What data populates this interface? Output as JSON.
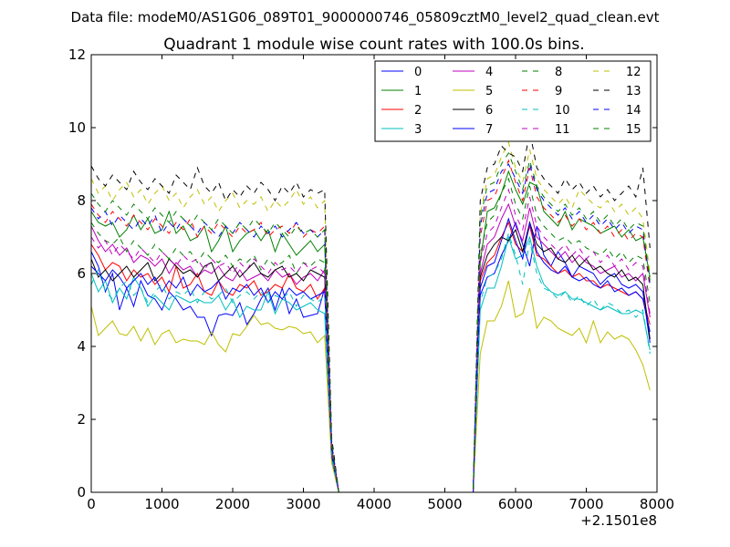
{
  "figure": {
    "suptitle": "Data file: modeM0/AS1G06_089T01_9000000746_05809cztM0_level2_quad_clean.evt"
  },
  "chart_data": {
    "type": "line",
    "title": "Quadrant 1 module wise count rates with 100.0s bins.",
    "xlabel": "",
    "ylabel": "",
    "xlim": [
      0,
      8000
    ],
    "ylim": [
      0,
      12
    ],
    "xticks": [
      0,
      1000,
      2000,
      3000,
      4000,
      5000,
      6000,
      7000,
      8000
    ],
    "xtick_labels": [
      "0",
      "1000",
      "2000",
      "3000",
      "4000",
      "5000",
      "6000",
      "7000",
      "8000"
    ],
    "yticks": [
      0,
      2,
      4,
      6,
      8,
      10,
      12
    ],
    "ytick_labels": [
      "0",
      "2",
      "4",
      "6",
      "8",
      "10",
      "12"
    ],
    "x_offset_label": "+2.1501e8",
    "grid": false,
    "legend_position": "top-right",
    "segments": [
      {
        "x_start": 0,
        "x_end": 3300,
        "step": 100
      },
      {
        "x_start": 5500,
        "x_end": 7900,
        "step": 100
      }
    ],
    "transition_x": [
      3300,
      3400,
      3500,
      5400,
      5500
    ],
    "series": [
      {
        "name": "0",
        "color": "#0000ff",
        "style": "solid",
        "seg1": [
          6.6,
          6.2,
          5.5,
          6.0,
          5.0,
          5.6,
          5.1,
          5.8,
          5.4,
          5.3,
          5.0,
          5.5,
          5.3,
          5.0,
          5.1,
          4.8,
          4.8,
          4.3,
          4.85,
          4.9,
          4.85,
          5.2,
          4.6,
          4.9,
          5.3,
          5.6,
          5.0,
          5.6,
          4.9,
          5.3,
          4.8,
          4.85,
          4.9,
          5.6
        ],
        "trans": [
          4.1,
          0.9,
          0,
          0,
          5.4
        ],
        "seg2": [
          5.4,
          5.9,
          6.0,
          6.5,
          6.9,
          7.4,
          6.8,
          6.2,
          7.3,
          6.5,
          6.2,
          6.6,
          6.3,
          5.9,
          6.2,
          6.1,
          6.0,
          5.7,
          5.9,
          6.0,
          5.7,
          5.6,
          5.7,
          5.5,
          4.1
        ]
      },
      {
        "name": "1",
        "color": "#008000",
        "style": "solid",
        "seg1": [
          7.7,
          7.4,
          7.3,
          7.4,
          7.0,
          7.2,
          7.6,
          7.2,
          7.5,
          7.1,
          7.2,
          7.7,
          7.1,
          7.3,
          6.9,
          7.0,
          7.3,
          6.6,
          6.9,
          7.3,
          6.6,
          6.9,
          7.1,
          7.2,
          6.9,
          7.2,
          6.6,
          7.1,
          6.8,
          6.5,
          6.7,
          6.9,
          6.6,
          6.8
        ],
        "trans": [
          5.0,
          1.2,
          0,
          0,
          6.3
        ],
        "seg2": [
          6.3,
          7.7,
          7.8,
          8.2,
          8.8,
          8.3,
          7.9,
          8.5,
          8.4,
          7.7,
          7.5,
          7.3,
          7.7,
          7.2,
          7.5,
          7.4,
          7.3,
          7.1,
          7.2,
          7.3,
          7.0,
          7.2,
          6.9,
          7.0,
          5.9
        ]
      },
      {
        "name": "2",
        "color": "#ff0000",
        "style": "solid",
        "seg1": [
          6.8,
          6.5,
          6.1,
          6.3,
          6.2,
          5.8,
          6.1,
          5.9,
          6.0,
          5.7,
          5.9,
          5.5,
          6.2,
          5.6,
          5.7,
          6.0,
          5.5,
          5.4,
          5.8,
          5.5,
          5.4,
          5.7,
          5.6,
          5.8,
          5.4,
          5.5,
          5.7,
          5.6,
          6.0,
          5.6,
          5.5,
          5.7,
          5.3,
          5.6
        ],
        "trans": [
          4.5,
          1.0,
          0,
          0,
          5.8
        ],
        "seg2": [
          5.8,
          6.3,
          6.5,
          7.0,
          7.4,
          6.8,
          6.6,
          7.3,
          6.5,
          6.4,
          6.2,
          6.0,
          6.1,
          5.9,
          6.0,
          5.8,
          5.8,
          5.6,
          5.7,
          5.6,
          5.5,
          5.4,
          5.5,
          5.3,
          4.6
        ]
      },
      {
        "name": "3",
        "color": "#00bfbf",
        "style": "solid",
        "seg1": [
          6.0,
          5.5,
          5.8,
          5.2,
          5.6,
          5.3,
          5.9,
          5.6,
          5.1,
          5.4,
          5.2,
          5.0,
          5.4,
          5.3,
          5.2,
          5.3,
          5.2,
          5.2,
          5.4,
          5.0,
          5.3,
          4.8,
          5.1,
          5.0,
          5.0,
          5.5,
          4.9,
          5.3,
          5.2,
          5.0,
          5.1,
          5.2,
          5.0,
          4.9
        ],
        "trans": [
          4.0,
          0.9,
          0,
          0,
          5.0
        ],
        "seg2": [
          5.0,
          5.6,
          5.6,
          6.2,
          7.0,
          6.4,
          6.5,
          7.0,
          6.2,
          5.7,
          5.5,
          5.4,
          5.5,
          5.3,
          5.3,
          5.2,
          5.1,
          5.0,
          5.1,
          5.0,
          4.9,
          4.9,
          5.0,
          4.9,
          3.9
        ]
      },
      {
        "name": "4",
        "color": "#bf00bf",
        "style": "solid",
        "seg1": [
          7.3,
          6.9,
          6.6,
          6.8,
          6.5,
          6.7,
          6.3,
          6.5,
          6.4,
          6.2,
          6.4,
          6.0,
          6.3,
          6.1,
          6.2,
          5.9,
          6.1,
          6.0,
          6.2,
          5.9,
          5.8,
          6.1,
          5.8,
          5.9,
          6.0,
          5.8,
          6.1,
          5.9,
          6.0,
          5.7,
          5.9,
          6.0,
          5.8,
          6.1
        ],
        "trans": [
          4.8,
          1.1,
          0,
          0,
          6.0
        ],
        "seg2": [
          6.0,
          6.8,
          7.0,
          7.5,
          7.9,
          7.3,
          6.9,
          7.8,
          7.0,
          6.8,
          6.6,
          6.4,
          6.6,
          6.3,
          6.5,
          6.3,
          6.2,
          6.0,
          6.1,
          6.2,
          5.9,
          6.0,
          5.8,
          6.0,
          4.8
        ]
      },
      {
        "name": "5",
        "color": "#bfbf00",
        "style": "solid",
        "seg1": [
          5.1,
          4.3,
          4.5,
          4.7,
          4.35,
          4.3,
          4.55,
          4.15,
          4.5,
          4.05,
          4.35,
          4.45,
          4.1,
          4.2,
          4.15,
          4.15,
          4.05,
          4.4,
          4.05,
          3.85,
          4.35,
          4.3,
          4.55,
          4.85,
          4.6,
          4.65,
          4.5,
          4.45,
          4.55,
          4.5,
          4.35,
          4.4,
          4.1,
          4.3
        ],
        "trans": [
          3.4,
          0.8,
          0,
          0,
          3.8
        ],
        "seg2": [
          3.8,
          4.7,
          4.7,
          5.1,
          5.8,
          4.8,
          4.9,
          5.6,
          4.5,
          4.8,
          4.7,
          4.5,
          4.4,
          4.3,
          4.5,
          4.1,
          4.7,
          4.1,
          4.4,
          4.2,
          4.3,
          4.2,
          3.9,
          3.5,
          2.8
        ]
      },
      {
        "name": "6",
        "color": "#000000",
        "style": "solid",
        "seg1": [
          6.4,
          5.9,
          6.1,
          5.8,
          6.0,
          6.2,
          5.9,
          6.1,
          6.3,
          5.8,
          6.0,
          6.4,
          6.2,
          6.0,
          6.1,
          5.9,
          6.2,
          6.3,
          5.8,
          6.0,
          6.2,
          5.9,
          6.1,
          6.3,
          6.0,
          5.9,
          6.1,
          6.2,
          5.9,
          6.0,
          5.8,
          6.1,
          6.0,
          5.9
        ],
        "trans": [
          4.9,
          1.1,
          0,
          0,
          5.9
        ],
        "seg2": [
          5.9,
          6.5,
          6.8,
          7.0,
          6.9,
          7.2,
          6.6,
          7.4,
          6.8,
          6.6,
          6.7,
          6.4,
          6.3,
          6.5,
          6.2,
          6.4,
          6.1,
          6.2,
          6.0,
          5.9,
          6.1,
          5.8,
          5.9,
          5.7,
          4.2
        ]
      },
      {
        "name": "7",
        "color": "#0000ff",
        "style": "solid",
        "seg1": [
          6.2,
          6.0,
          5.8,
          6.1,
          5.9,
          5.6,
          5.8,
          6.0,
          5.7,
          5.9,
          5.5,
          5.8,
          5.6,
          5.9,
          5.4,
          5.7,
          5.5,
          5.6,
          5.8,
          5.3,
          5.6,
          5.5,
          5.7,
          5.4,
          5.6,
          5.2,
          5.5,
          5.3,
          5.6,
          5.4,
          5.5,
          5.3,
          5.4,
          5.5
        ],
        "trans": [
          4.3,
          1.0,
          0,
          0,
          5.6
        ],
        "seg2": [
          5.6,
          6.2,
          6.3,
          6.9,
          7.5,
          6.9,
          6.4,
          7.4,
          6.6,
          6.3,
          6.1,
          6.0,
          6.2,
          5.9,
          5.8,
          5.9,
          5.7,
          5.6,
          5.8,
          5.5,
          5.6,
          5.4,
          5.5,
          5.3,
          4.4
        ]
      },
      {
        "name": "8",
        "color": "#008000",
        "style": "dashed",
        "seg1": [
          7.4,
          7.1,
          6.9,
          6.8,
          7.0,
          6.6,
          6.9,
          6.7,
          6.5,
          6.8,
          6.6,
          6.4,
          6.7,
          6.5,
          6.6,
          6.3,
          6.6,
          6.4,
          6.3,
          6.5,
          6.2,
          6.4,
          6.3,
          6.5,
          6.1,
          6.4,
          6.2,
          6.3,
          6.5,
          6.0,
          6.3,
          6.2,
          6.4,
          6.3
        ],
        "trans": [
          5.0,
          1.2,
          0,
          0,
          6.5
        ],
        "seg2": [
          6.5,
          7.4,
          7.6,
          8.2,
          8.6,
          7.9,
          7.5,
          8.4,
          7.6,
          7.3,
          7.1,
          6.9,
          7.0,
          6.8,
          6.9,
          6.7,
          6.6,
          6.5,
          6.7,
          6.4,
          6.6,
          6.3,
          6.5,
          6.4,
          5.2
        ]
      },
      {
        "name": "9",
        "color": "#ff0000",
        "style": "dashed",
        "seg1": [
          7.9,
          7.6,
          7.4,
          7.7,
          7.5,
          7.3,
          7.6,
          7.4,
          7.2,
          7.5,
          7.3,
          7.1,
          7.4,
          7.2,
          7.5,
          7.0,
          7.3,
          7.1,
          7.4,
          7.2,
          7.0,
          7.3,
          7.1,
          7.2,
          7.4,
          7.0,
          7.2,
          7.3,
          7.1,
          7.4,
          7.0,
          7.2,
          7.1,
          7.3
        ],
        "trans": [
          5.4,
          1.3,
          0,
          0,
          7.0
        ],
        "seg2": [
          7.0,
          8.0,
          8.1,
          8.6,
          9.1,
          8.5,
          8.0,
          8.9,
          8.1,
          7.8,
          7.6,
          7.4,
          7.6,
          7.3,
          7.5,
          7.2,
          7.4,
          7.1,
          7.3,
          7.0,
          7.2,
          6.9,
          7.1,
          7.0,
          5.6
        ]
      },
      {
        "name": "10",
        "color": "#00bfbf",
        "style": "dashed",
        "seg1": [
          5.7,
          6.1,
          5.5,
          5.3,
          5.6,
          5.8,
          5.4,
          5.6,
          5.2,
          5.5,
          5.7,
          5.3,
          5.5,
          5.4,
          5.6,
          5.2,
          5.5,
          5.3,
          5.4,
          5.6,
          5.2,
          5.4,
          5.5,
          5.3,
          5.5,
          5.2,
          5.4,
          5.3,
          5.5,
          5.1,
          5.4,
          5.3,
          5.2,
          5.4
        ],
        "trans": [
          4.2,
          1.0,
          0,
          0,
          5.2
        ],
        "seg2": [
          5.2,
          5.9,
          6.0,
          6.4,
          7.1,
          6.5,
          5.7,
          6.9,
          6.0,
          5.6,
          5.5,
          5.3,
          5.5,
          5.2,
          5.4,
          5.1,
          5.3,
          5.0,
          5.2,
          5.1,
          4.9,
          5.0,
          4.8,
          5.0,
          3.8
        ]
      },
      {
        "name": "11",
        "color": "#bf00bf",
        "style": "dashed",
        "seg1": [
          7.0,
          6.7,
          6.9,
          6.5,
          6.8,
          6.6,
          6.4,
          6.7,
          6.5,
          6.3,
          6.6,
          6.4,
          6.2,
          6.5,
          6.3,
          6.4,
          6.1,
          6.4,
          6.2,
          6.3,
          6.0,
          6.3,
          6.1,
          6.4,
          6.2,
          6.0,
          6.3,
          6.1,
          6.2,
          6.0,
          6.3,
          6.1,
          6.2,
          6.0
        ],
        "trans": [
          4.9,
          1.1,
          0,
          0,
          6.3
        ],
        "seg2": [
          6.3,
          7.1,
          7.3,
          7.8,
          8.3,
          7.6,
          7.2,
          8.1,
          7.3,
          7.0,
          6.8,
          6.6,
          6.8,
          6.5,
          6.7,
          6.4,
          6.6,
          6.3,
          6.5,
          6.2,
          6.4,
          6.1,
          6.3,
          6.2,
          4.9
        ]
      },
      {
        "name": "12",
        "color": "#bfbf00",
        "style": "dashed",
        "seg1": [
          8.6,
          8.2,
          8.4,
          8.0,
          8.3,
          8.5,
          8.1,
          8.3,
          7.9,
          8.2,
          8.4,
          8.0,
          8.2,
          7.8,
          8.1,
          8.3,
          7.9,
          8.1,
          7.7,
          8.0,
          8.2,
          7.8,
          8.0,
          7.9,
          8.1,
          7.7,
          8.0,
          7.8,
          8.0,
          8.3,
          7.9,
          8.1,
          7.8,
          8.0
        ],
        "trans": [
          5.9,
          1.4,
          0,
          0,
          7.6
        ],
        "seg2": [
          7.6,
          8.6,
          8.7,
          9.2,
          9.6,
          8.9,
          8.5,
          9.4,
          8.6,
          8.3,
          8.1,
          7.9,
          8.1,
          7.8,
          8.3,
          8.1,
          7.9,
          7.8,
          8.0,
          7.7,
          7.9,
          7.6,
          7.8,
          7.5,
          6.0
        ]
      },
      {
        "name": "13",
        "color": "#000000",
        "style": "dashed",
        "seg1": [
          8.95,
          8.6,
          8.4,
          8.7,
          8.5,
          8.3,
          8.8,
          8.5,
          8.3,
          8.6,
          8.4,
          8.2,
          8.7,
          8.5,
          8.3,
          8.9,
          8.4,
          8.2,
          8.5,
          8.0,
          8.3,
          8.1,
          8.4,
          8.2,
          8.5,
          8.3,
          8.0,
          8.4,
          8.2,
          8.5,
          8.1,
          8.3,
          8.2,
          8.3
        ],
        "trans": [
          6.2,
          1.5,
          0,
          0,
          8.0
        ],
        "seg2": [
          8.0,
          8.9,
          9.0,
          9.5,
          9.3,
          9.2,
          8.8,
          9.9,
          8.9,
          8.6,
          8.4,
          8.2,
          8.6,
          8.3,
          8.5,
          8.2,
          8.4,
          8.1,
          8.3,
          8.0,
          8.2,
          8.4,
          8.1,
          8.9,
          6.7
        ]
      },
      {
        "name": "14",
        "color": "#0000ff",
        "style": "dashed",
        "seg1": [
          7.8,
          7.5,
          7.7,
          7.3,
          7.6,
          7.4,
          7.2,
          7.5,
          7.3,
          7.6,
          7.1,
          7.4,
          7.2,
          7.5,
          7.3,
          7.1,
          7.4,
          7.2,
          7.0,
          7.3,
          7.1,
          7.4,
          7.2,
          7.0,
          7.3,
          7.1,
          7.3,
          7.0,
          7.2,
          7.4,
          7.1,
          7.2,
          7.0,
          7.2
        ],
        "trans": [
          5.3,
          1.3,
          0,
          0,
          7.3
        ],
        "seg2": [
          7.3,
          8.2,
          8.3,
          8.8,
          9.0,
          8.6,
          8.2,
          9.0,
          8.3,
          8.0,
          7.8,
          7.6,
          7.8,
          7.5,
          7.7,
          7.4,
          7.6,
          7.3,
          7.5,
          7.2,
          7.4,
          7.1,
          7.3,
          7.2,
          5.7
        ]
      },
      {
        "name": "15",
        "color": "#008000",
        "style": "dashed",
        "seg1": [
          8.2,
          7.9,
          7.7,
          8.0,
          7.8,
          7.6,
          7.9,
          7.7,
          7.5,
          7.8,
          7.6,
          7.4,
          7.7,
          7.5,
          7.3,
          7.6,
          7.4,
          7.2,
          7.5,
          7.3,
          7.1,
          7.4,
          7.2,
          7.5,
          7.3,
          7.1,
          7.4,
          7.2,
          7.0,
          7.3,
          7.1,
          7.2,
          7.0,
          7.2
        ],
        "trans": [
          5.6,
          1.3,
          0,
          0,
          7.5
        ],
        "seg2": [
          7.5,
          8.4,
          8.5,
          9.0,
          9.3,
          8.8,
          8.3,
          9.1,
          8.4,
          8.1,
          7.9,
          7.7,
          7.9,
          7.6,
          7.8,
          7.5,
          7.7,
          7.4,
          7.6,
          7.3,
          7.5,
          7.2,
          7.4,
          7.3,
          5.8
        ]
      }
    ]
  }
}
